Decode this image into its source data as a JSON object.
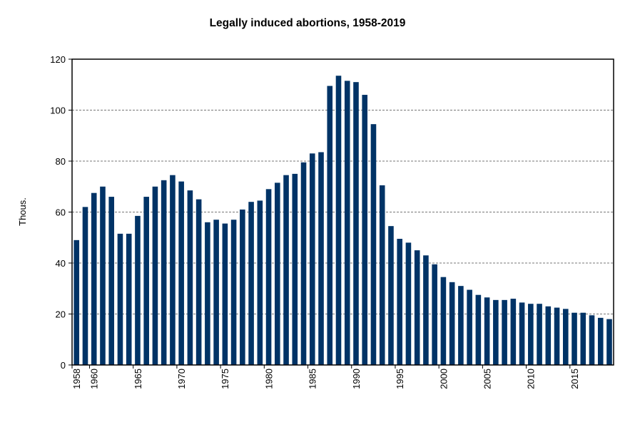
{
  "chart_data": {
    "type": "bar",
    "title": "Legally induced abortions, 1958-2019",
    "xlabel": "",
    "ylabel": "Thous.",
    "ylim": [
      0,
      120
    ],
    "yticks": [
      0,
      20,
      40,
      60,
      80,
      100,
      120
    ],
    "xtick_labels": [
      "1958",
      "1960",
      "1965",
      "1970",
      "1975",
      "1980",
      "1985",
      "1990",
      "1995",
      "2000",
      "2005",
      "2010",
      "2015"
    ],
    "grid": "horizontal dashed",
    "bar_color": "#003366",
    "categories": [
      1958,
      1959,
      1960,
      1961,
      1962,
      1963,
      1964,
      1965,
      1966,
      1967,
      1968,
      1969,
      1970,
      1971,
      1972,
      1973,
      1974,
      1975,
      1976,
      1977,
      1978,
      1979,
      1980,
      1981,
      1982,
      1983,
      1984,
      1985,
      1986,
      1987,
      1988,
      1989,
      1990,
      1991,
      1992,
      1993,
      1994,
      1995,
      1996,
      1997,
      1998,
      1999,
      2000,
      2001,
      2002,
      2003,
      2004,
      2005,
      2006,
      2007,
      2008,
      2009,
      2010,
      2011,
      2012,
      2013,
      2014,
      2015,
      2016,
      2017,
      2018,
      2019
    ],
    "values": [
      49,
      62,
      67.5,
      70,
      66,
      51.5,
      51.5,
      58.5,
      66,
      70,
      72.5,
      74.5,
      72,
      68.5,
      65,
      56,
      57,
      55.5,
      57,
      61,
      64,
      64.5,
      69,
      71.5,
      74.5,
      75,
      79.5,
      83,
      83.5,
      109.5,
      113.5,
      111.5,
      111,
      106,
      94.5,
      70.5,
      54.5,
      49.5,
      48,
      45,
      43,
      39.5,
      34.5,
      32.5,
      31,
      29.5,
      27.5,
      26.5,
      25.5,
      25.5,
      26,
      24.5,
      24,
      24,
      23,
      22.5,
      22,
      20.5,
      20.5,
      19.5,
      18.5,
      18
    ]
  }
}
